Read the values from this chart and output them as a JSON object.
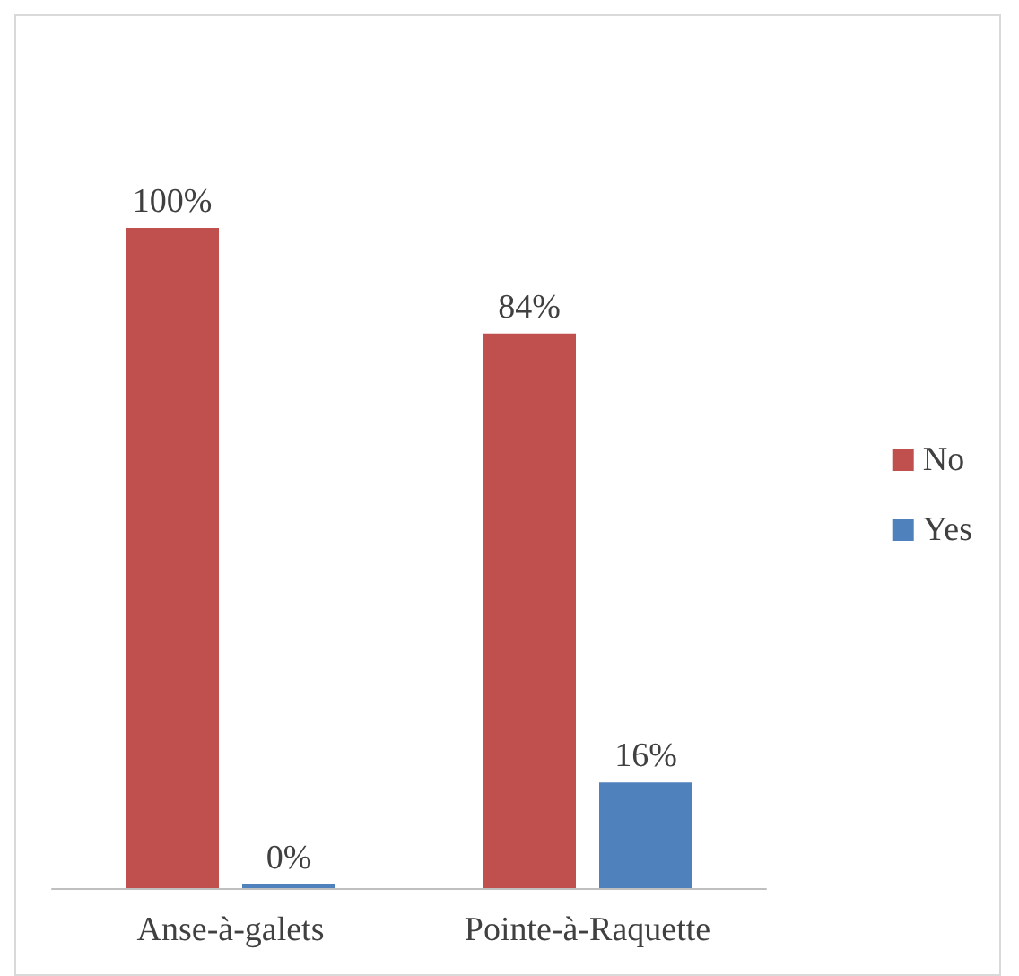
{
  "chart_data": {
    "type": "bar",
    "categories": [
      "Anse-à-galets",
      "Pointe-à-Raquette"
    ],
    "series": [
      {
        "name": "No",
        "color": "#c0504d",
        "values": [
          100,
          84
        ],
        "value_labels": [
          "100%",
          "84%"
        ]
      },
      {
        "name": "Yes",
        "color": "#4f81bd",
        "values": [
          0,
          16
        ],
        "value_labels": [
          "0%",
          "16%"
        ]
      }
    ],
    "ylim": [
      0,
      100
    ],
    "tick_labels": "x",
    "legend": "right"
  }
}
